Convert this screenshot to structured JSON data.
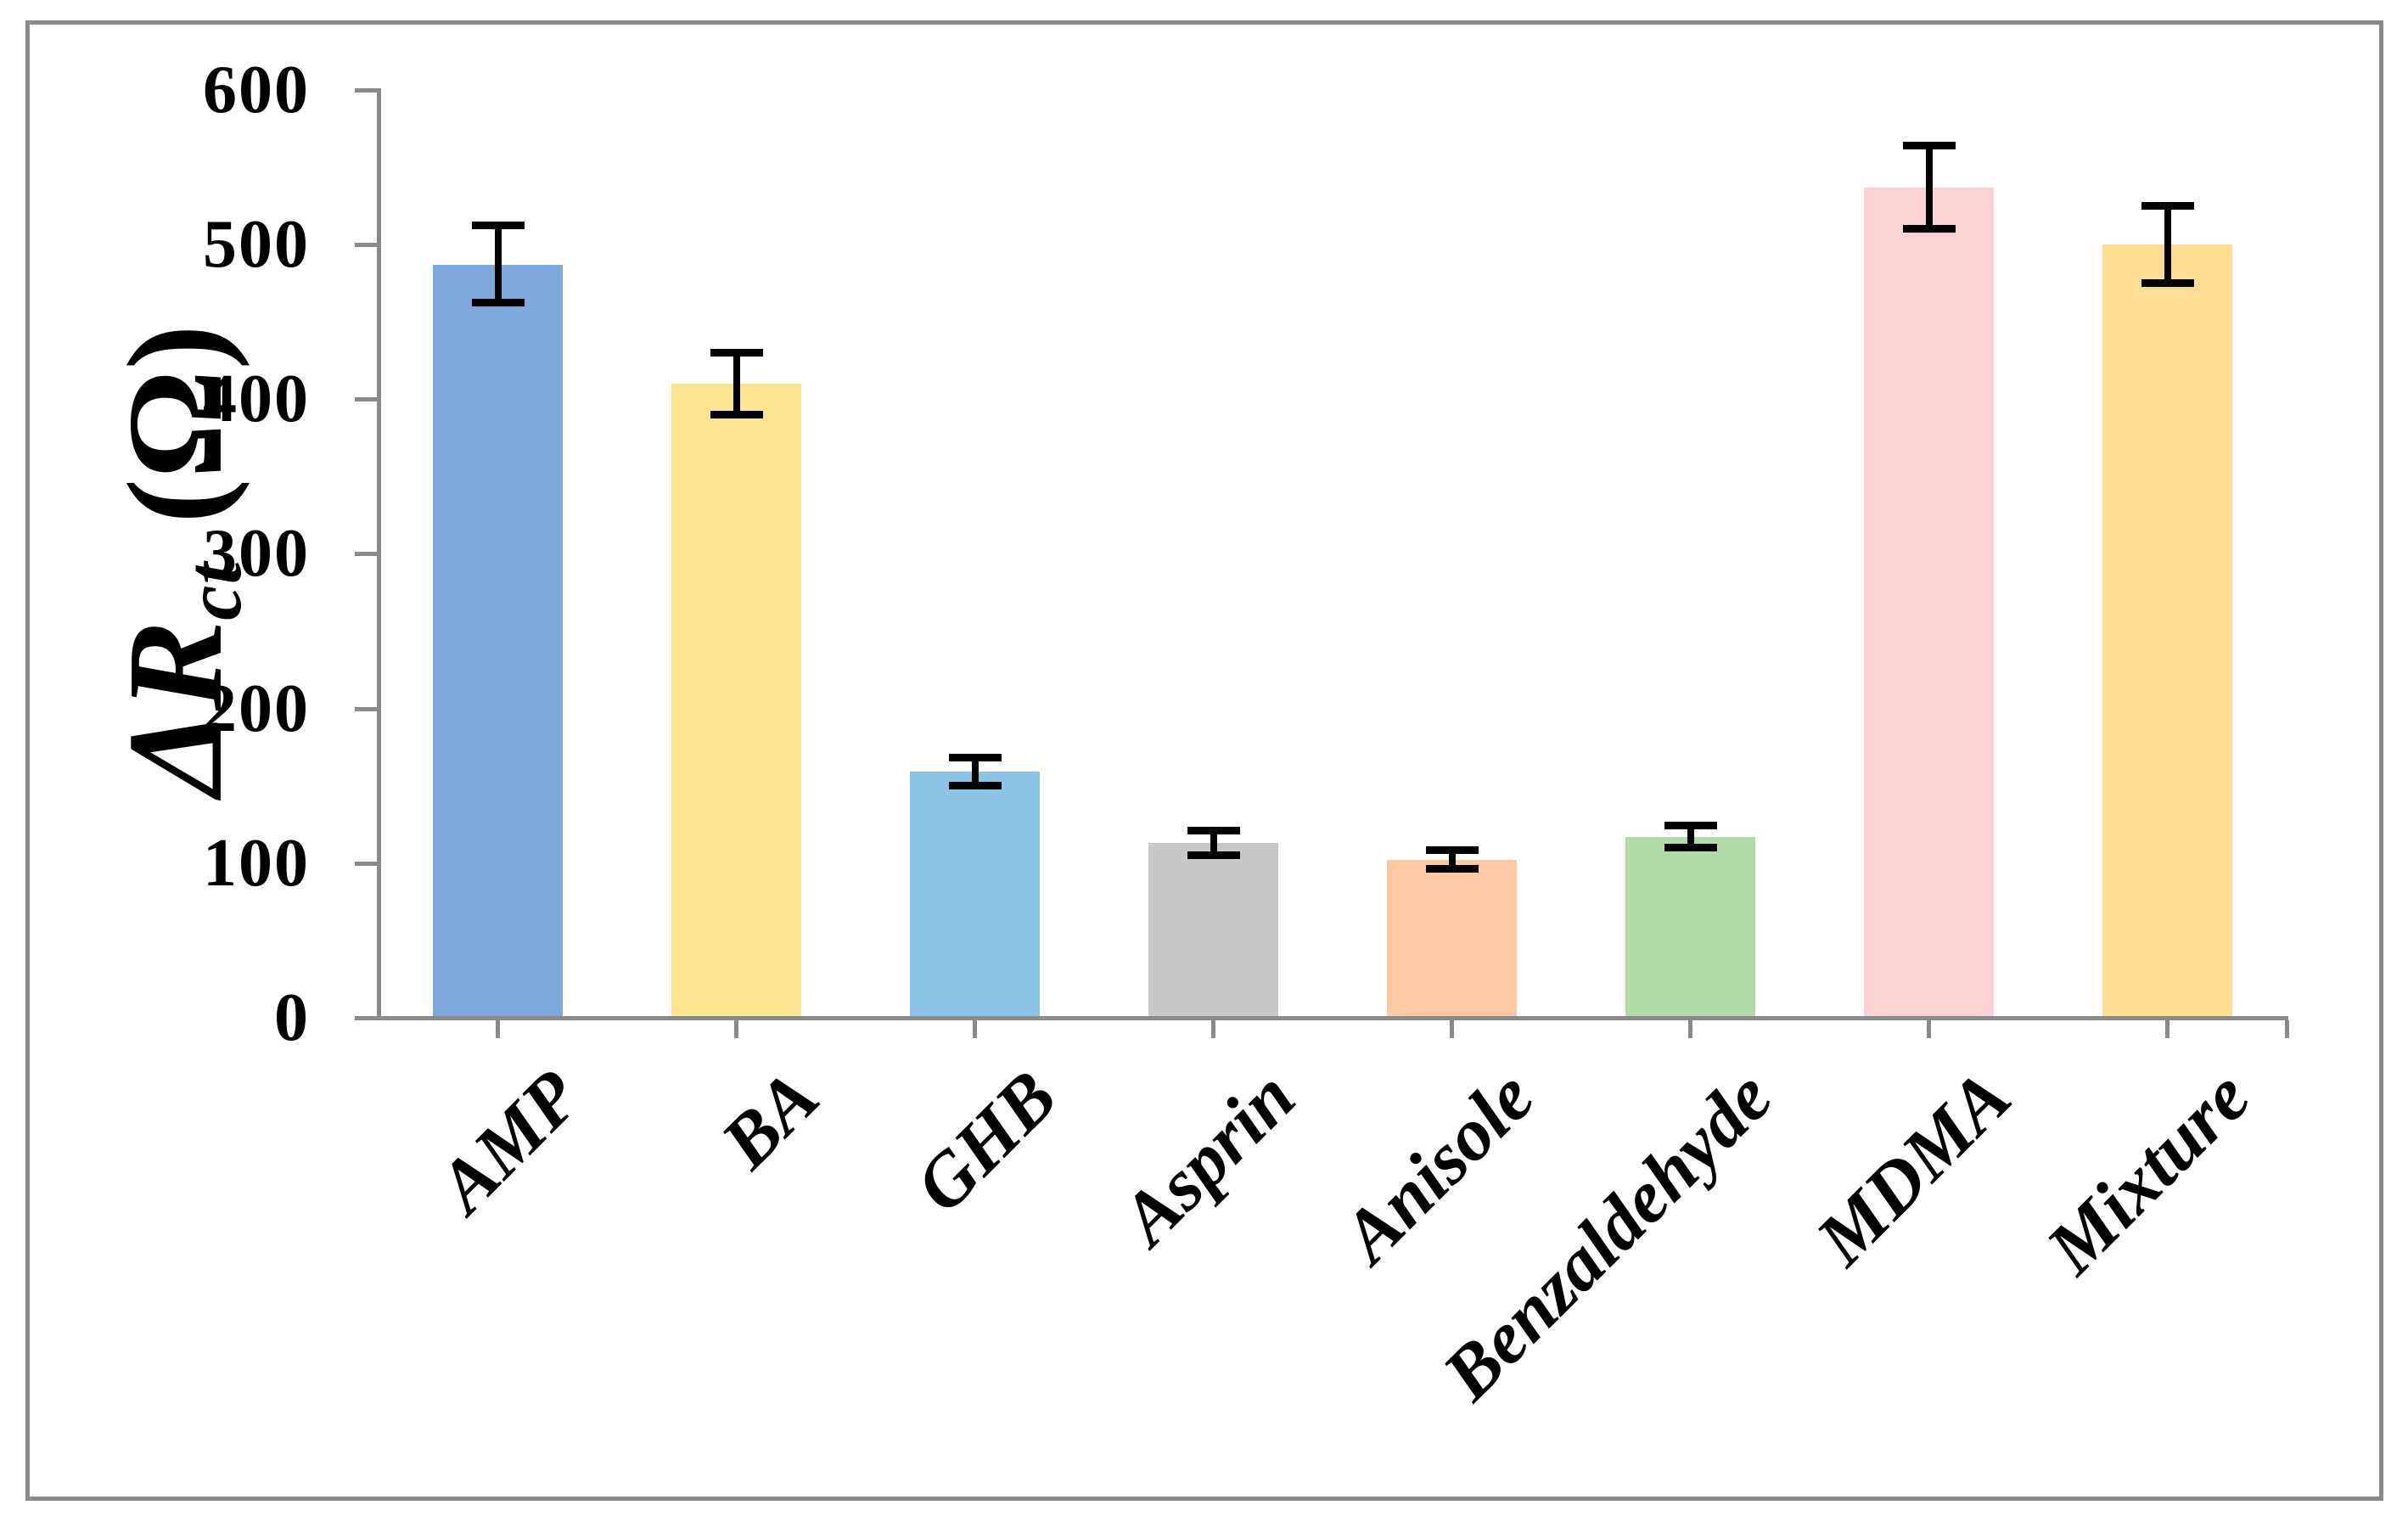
{
  "figure": {
    "background": "#ffffff",
    "border_color": "#8a8a8a"
  },
  "axes": {
    "axis_color": "#8a8a8a",
    "text_color": "#000000",
    "y_title": {
      "main": "ΔR",
      "sub": "ct",
      "unit": "(Ω)"
    },
    "y_ticks": [
      600,
      500,
      400,
      300,
      200,
      100,
      0
    ]
  },
  "chart_data": {
    "type": "bar",
    "title": "",
    "xlabel": "",
    "ylabel": "ΔR_ct (Ω)",
    "ylim": [
      0,
      600
    ],
    "grid": false,
    "legend": "none",
    "categories": [
      "AMP",
      "BA",
      "GHB",
      "Asprin",
      "Anisole",
      "Benzaldehyde",
      "MDMA",
      "Mixture"
    ],
    "values": [
      487,
      410,
      159,
      113,
      102,
      117,
      537,
      500
    ],
    "error_bars": [
      25,
      20,
      9,
      8,
      6,
      7,
      27,
      25
    ],
    "bar_colors": [
      "#7FA9DC",
      "#FDE491",
      "#8DC5E8",
      "#C7C7C7",
      "#FDC9A4",
      "#B3DBA8",
      "#FCD2D4",
      "#FDDE94"
    ]
  }
}
